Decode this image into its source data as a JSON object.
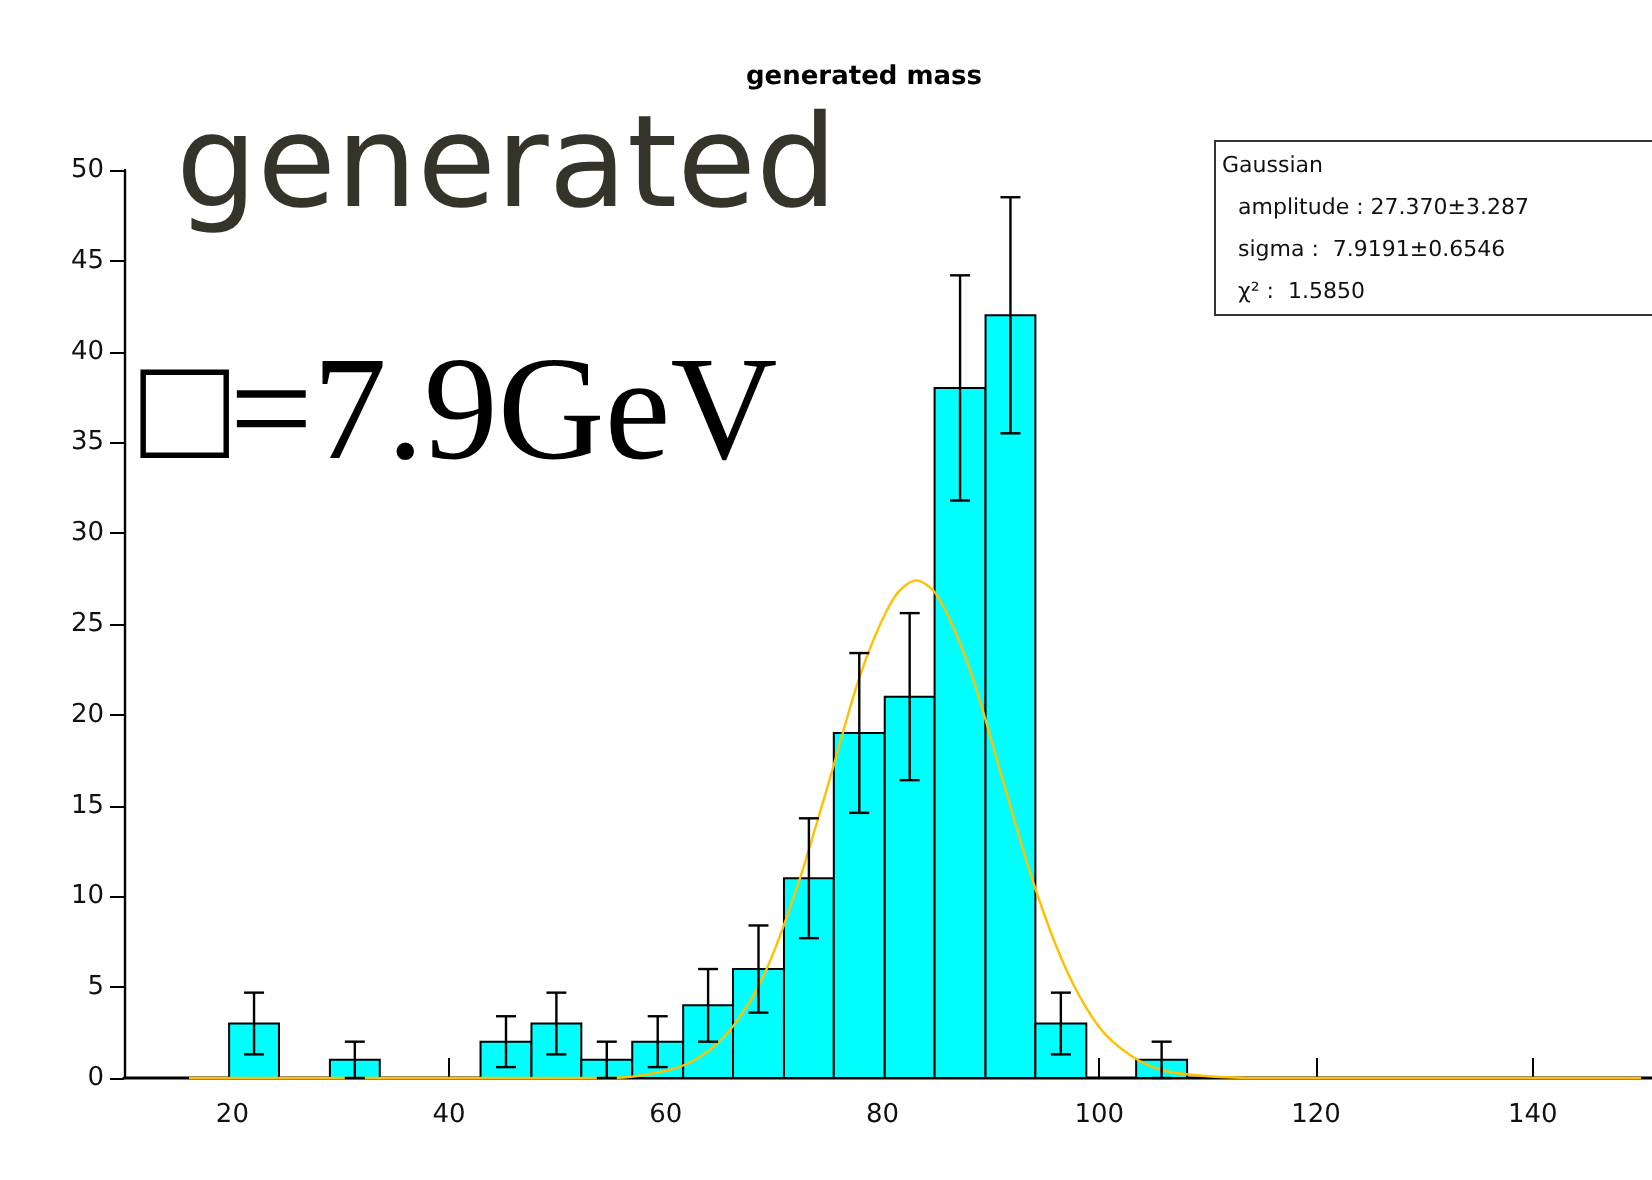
{
  "chart_data": {
    "type": "histogram",
    "title": "generated mass",
    "annotations": [
      "generated",
      "□=7.9GeV",
      "Gaussian",
      "amplitude : 27.370±3.287",
      "sigma :  7.9191±0.6546",
      "χ² :  1.5850"
    ],
    "xlim": [
      10,
      151
    ],
    "xticks": [
      20,
      40,
      60,
      80,
      100,
      120,
      140
    ],
    "ylim": [
      0,
      50
    ],
    "yticks": [
      0,
      5,
      10,
      15,
      20,
      25,
      30,
      35,
      40,
      45,
      50
    ],
    "grid": false,
    "marker": "none",
    "series": [
      {
        "color": "#00ffff",
        "bins": [
          19.7,
          24.3,
          29,
          33.6,
          42.9,
          47.6,
          52.2,
          56.9,
          61.6,
          66.2,
          70.9,
          75.5,
          80.2,
          84.8,
          89.5,
          94.1,
          98.8,
          103.4,
          108.1
        ],
        "values": [
          3,
          0,
          1,
          0,
          2,
          3,
          1,
          2,
          4,
          6,
          11,
          19,
          21,
          38,
          42,
          3,
          0,
          1
        ],
        "errors": [
          1.7,
          null,
          1,
          null,
          1.4,
          1.7,
          1,
          1.4,
          2,
          2.4,
          3.3,
          4.4,
          4.6,
          6.2,
          6.5,
          1.7,
          null,
          1
        ]
      },
      {
        "type": "line",
        "color": "#ffc000",
        "x": [
          16,
          50,
          55,
          60,
          63,
          66,
          69,
          72,
          75,
          78,
          81,
          83.1,
          85,
          88,
          91,
          94,
          97,
          100,
          103,
          106,
          110,
          115,
          150
        ],
        "values": [
          0,
          0,
          0,
          0.4,
          1.1,
          2.7,
          5.6,
          10.3,
          16.2,
          22.3,
          26.4,
          27.4,
          26.6,
          22.6,
          16.6,
          10.6,
          5.9,
          2.8,
          1.2,
          0.4,
          0.1,
          0,
          0
        ]
      }
    ]
  }
}
